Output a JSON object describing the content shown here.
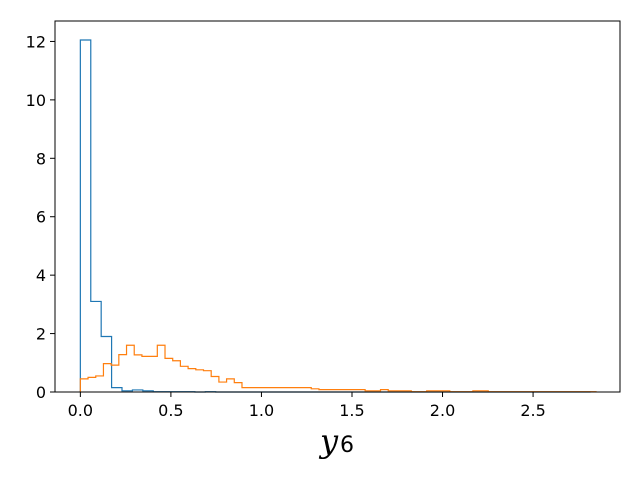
{
  "chart_data": {
    "type": "histogram",
    "title": "",
    "xlabel": {
      "base": "y",
      "subscript": "6"
    },
    "ylabel": "",
    "xlim": [
      -0.14,
      2.98
    ],
    "ylim": [
      0,
      12.7
    ],
    "xticks": [
      0.0,
      0.5,
      1.0,
      1.5,
      2.0,
      2.5
    ],
    "xtick_labels": [
      "0.0",
      "0.5",
      "1.0",
      "1.5",
      "2.0",
      "2.5"
    ],
    "yticks": [
      0,
      2,
      4,
      6,
      8,
      10,
      12
    ],
    "ytick_labels": [
      "0",
      "2",
      "4",
      "6",
      "8",
      "10",
      "12"
    ],
    "grid": false,
    "histtype": "step",
    "series": [
      {
        "color": "#1f77b4",
        "edges": [
          0.0,
          0.0575,
          0.115,
          0.1725,
          0.23,
          0.2875,
          0.345,
          0.4025,
          0.46,
          0.5175,
          0.575,
          0.6325,
          0.69,
          0.7475,
          0.805,
          0.8625,
          0.92,
          0.9775,
          1.035,
          1.0925,
          1.15,
          1.2075,
          1.265,
          1.3225,
          1.38,
          1.4375,
          1.495,
          1.5525,
          1.61,
          1.6675,
          1.725,
          1.7825,
          1.84,
          1.8975,
          1.955,
          2.0125,
          2.07,
          2.1275,
          2.185,
          2.2425,
          2.3,
          2.3575,
          2.415,
          2.4725,
          2.53,
          2.5875,
          2.645,
          2.7025,
          2.76,
          2.8175
        ],
        "values": [
          12.05,
          3.1,
          1.9,
          0.15,
          0.04,
          0.07,
          0.04,
          0.01,
          0.01,
          0.01,
          0.01,
          0.0,
          0.01,
          0.0,
          0.0,
          0.0,
          0.0,
          0.0,
          0.0,
          0.0,
          0.0,
          0.0,
          0.0,
          0.0,
          0.0,
          0.0,
          0.0,
          0.0,
          0.0,
          0.0,
          0.0,
          0.0,
          0.0,
          0.0,
          0.0,
          0.0,
          0.0,
          0.0,
          0.0,
          0.0,
          0.0,
          0.0,
          0.0,
          0.0,
          0.0,
          0.0,
          0.0,
          0.0,
          0.0
        ]
      },
      {
        "color": "#ff7f0e",
        "edges": [
          0.0,
          0.0425,
          0.085,
          0.1275,
          0.17,
          0.2125,
          0.255,
          0.2975,
          0.34,
          0.3825,
          0.425,
          0.4675,
          0.51,
          0.5525,
          0.595,
          0.6375,
          0.68,
          0.7225,
          0.765,
          0.8075,
          0.85,
          0.8925,
          0.935,
          0.9775,
          1.02,
          1.0625,
          1.105,
          1.1475,
          1.19,
          1.2325,
          1.275,
          1.3175,
          1.36,
          1.4025,
          1.445,
          1.4875,
          1.53,
          1.5725,
          1.615,
          1.6575,
          1.7,
          1.7425,
          1.785,
          1.8275,
          1.87,
          1.9125,
          1.955,
          1.9975,
          2.04,
          2.0825,
          2.125,
          2.1675,
          2.21,
          2.2525,
          2.295,
          2.3375,
          2.38,
          2.4225,
          2.465,
          2.5075,
          2.55,
          2.5925,
          2.635,
          2.6775,
          2.72,
          2.7625,
          2.805,
          2.8475
        ],
        "values": [
          0.45,
          0.5,
          0.55,
          0.97,
          0.92,
          1.28,
          1.6,
          1.27,
          1.22,
          1.22,
          1.6,
          1.15,
          1.07,
          0.88,
          0.8,
          0.76,
          0.73,
          0.53,
          0.34,
          0.45,
          0.32,
          0.15,
          0.15,
          0.15,
          0.15,
          0.15,
          0.15,
          0.15,
          0.15,
          0.15,
          0.11,
          0.08,
          0.08,
          0.08,
          0.08,
          0.08,
          0.08,
          0.04,
          0.04,
          0.08,
          0.04,
          0.04,
          0.04,
          0.01,
          0.01,
          0.04,
          0.04,
          0.04,
          0.01,
          0.01,
          0.01,
          0.04,
          0.04,
          0.01,
          0.01,
          0.01,
          0.01,
          0.01,
          0.01,
          0.01,
          0.01,
          0.01,
          0.01,
          0.01,
          0.01,
          0.01,
          0.01
        ]
      }
    ]
  }
}
